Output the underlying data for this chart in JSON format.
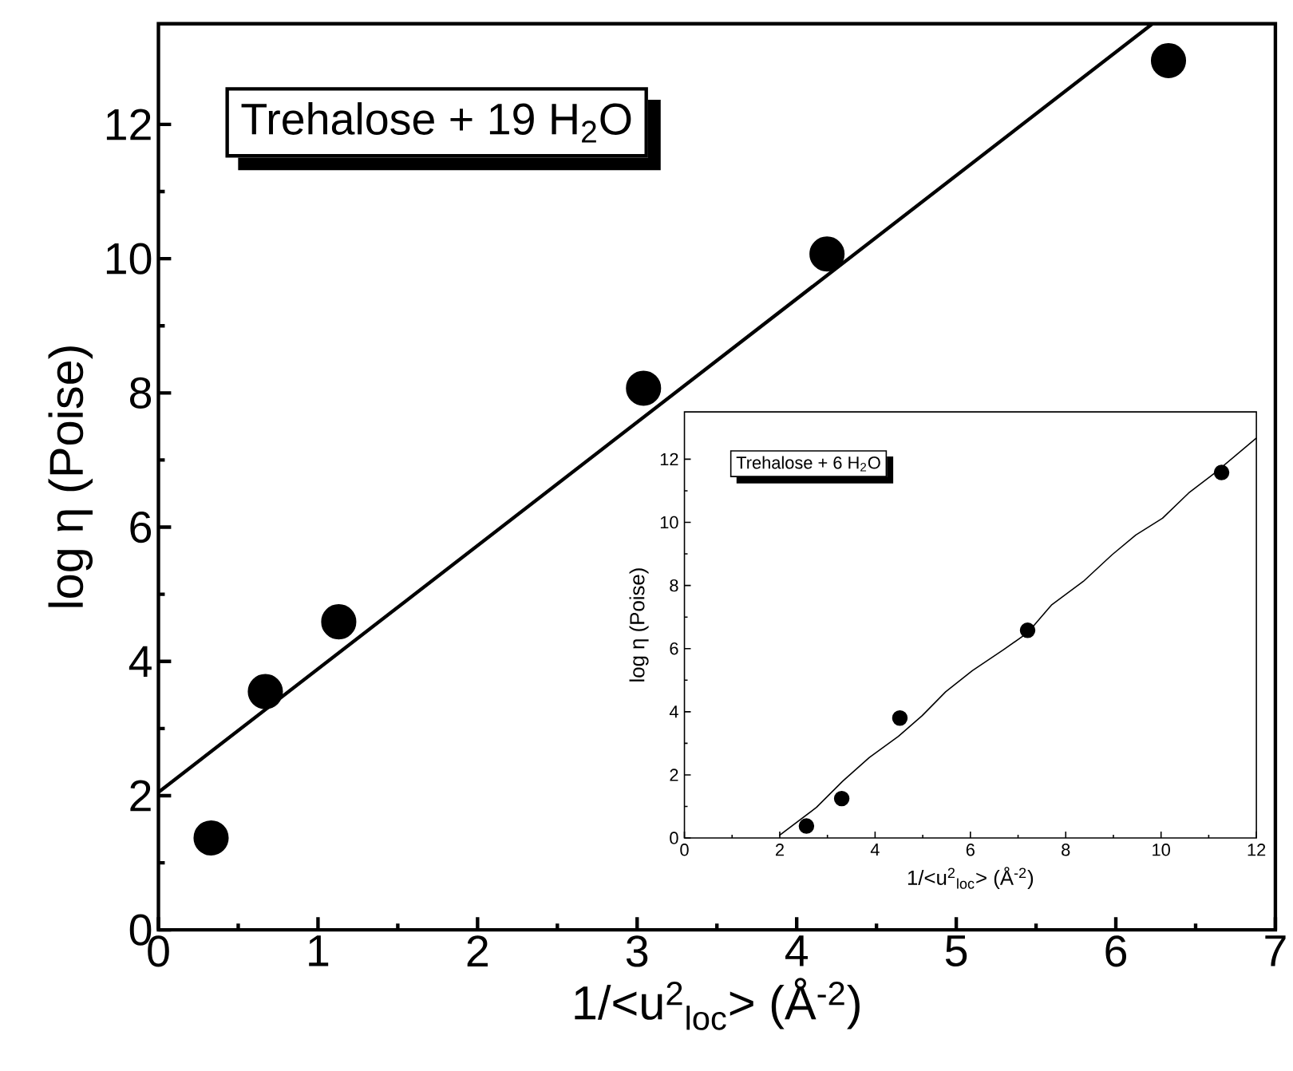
{
  "chart_data": [
    {
      "type": "scatter",
      "xlabel": "1/<u$^{2}$$_{loc}$> (Å$^{-2}$)",
      "ylabel": "log η (Poise)",
      "xlim": [
        0,
        7
      ],
      "ylim": [
        0,
        13.5
      ],
      "xticks": [
        0,
        1,
        2,
        3,
        4,
        5,
        6,
        7
      ],
      "yticks": [
        0,
        2,
        4,
        6,
        8,
        10,
        12
      ],
      "annotations": [
        "Trehalose + 19 H$_{2}$O"
      ],
      "series": [
        {
          "type": "scatter",
          "color": "#000000",
          "marker": "circle",
          "x": [
            0.33,
            0.67,
            1.13,
            3.04,
            4.19,
            6.33
          ],
          "values": [
            1.37,
            3.55,
            4.59,
            8.07,
            10.07,
            12.95
          ]
        },
        {
          "type": "line",
          "color": "#000000",
          "marker": "none",
          "x": [
            0,
            6.23
          ],
          "values": [
            2.05,
            13.5
          ]
        }
      ]
    },
    {
      "type": "scatter",
      "xlabel": "1/<u$^{2}$$_{loc}$> (Å$^{-2}$)",
      "ylabel": "log η (Poise)",
      "xlim": [
        0,
        12
      ],
      "ylim": [
        0,
        13.5
      ],
      "xticks": [
        0,
        2,
        4,
        6,
        8,
        10,
        12
      ],
      "yticks": [
        0,
        2,
        4,
        6,
        8,
        10,
        12
      ],
      "annotations": [
        "Trehalose + 6 H$_{2}$O"
      ],
      "series": [
        {
          "type": "scatter",
          "color": "#000000",
          "marker": "circle",
          "x": [
            2.56,
            3.3,
            4.52,
            7.2,
            11.27
          ],
          "values": [
            0.38,
            1.25,
            3.8,
            6.58,
            11.58
          ]
        },
        {
          "type": "line",
          "color": "#000000",
          "marker": "none",
          "x": [
            1.99,
            2.77,
            3.32,
            3.88,
            4.49,
            4.99,
            5.48,
            6.04,
            6.7,
            7.2,
            7.7,
            8.37,
            8.97,
            9.47,
            10.03,
            10.58,
            11.14,
            12.0
          ],
          "values": [
            0.08,
            0.97,
            1.8,
            2.55,
            3.22,
            3.88,
            4.63,
            5.3,
            5.97,
            6.5,
            7.38,
            8.13,
            8.97,
            9.6,
            10.13,
            10.93,
            11.58,
            12.67
          ]
        }
      ]
    }
  ]
}
